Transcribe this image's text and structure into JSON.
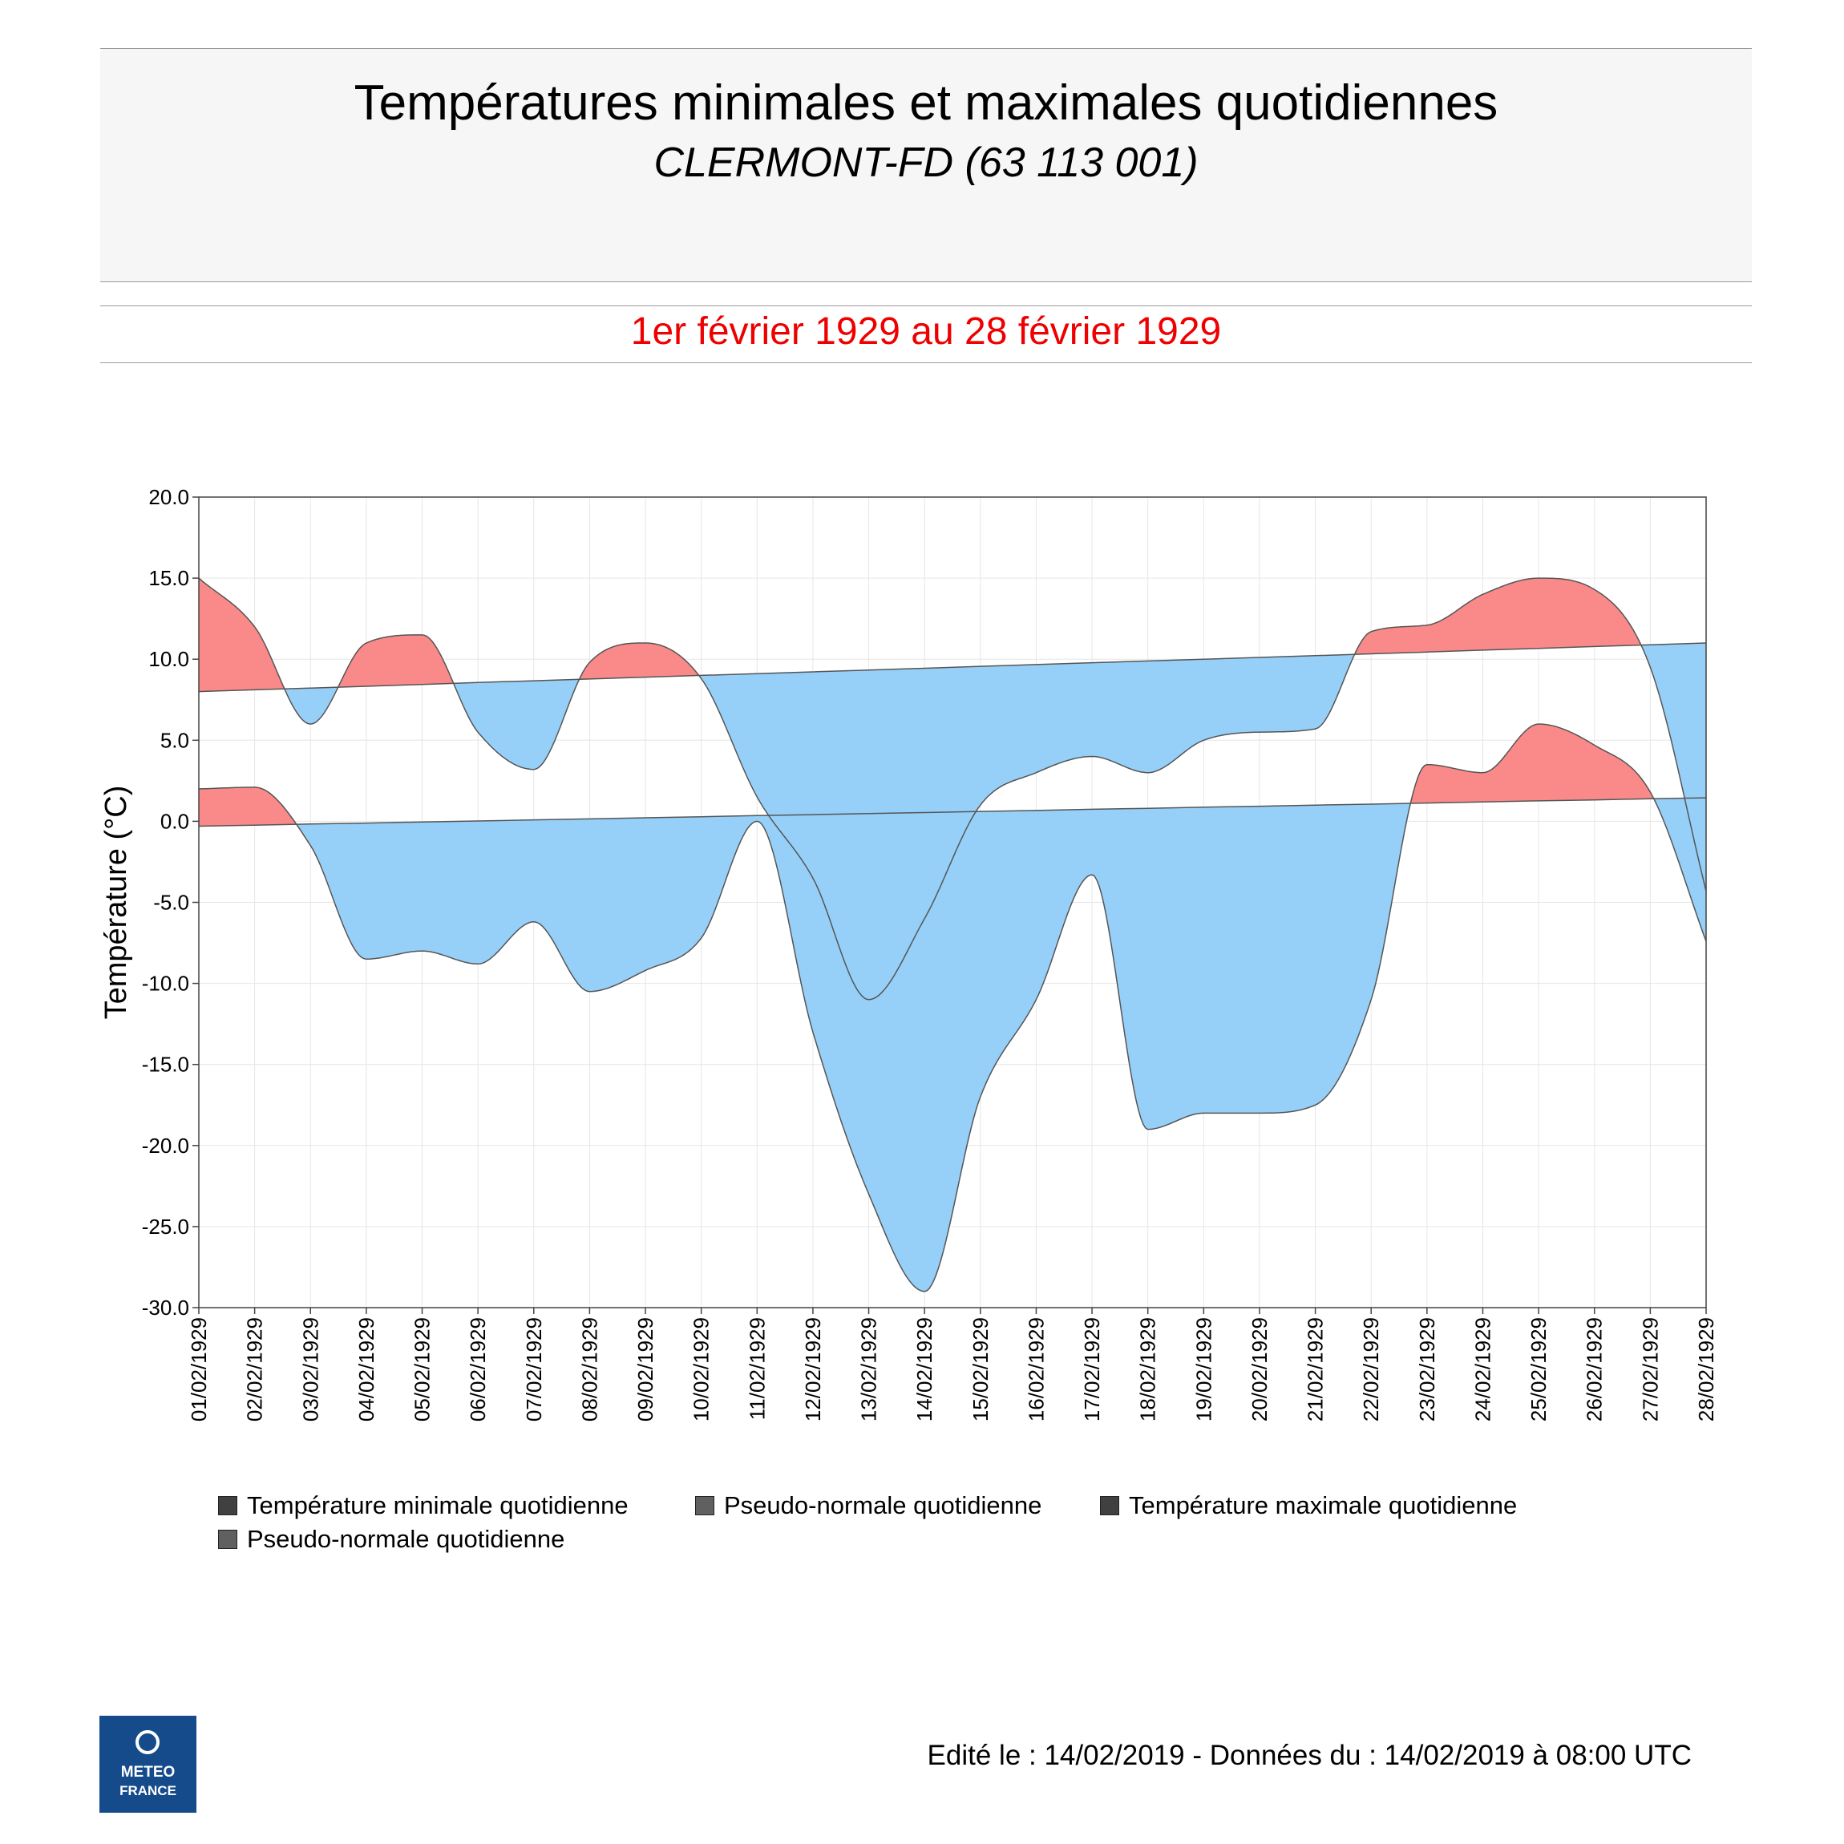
{
  "header": {
    "title": "Températures minimales et maximales quotidiennes",
    "station": "CLERMONT-FD (63 113 001)",
    "period": "1er février 1929 au 28 février 1929"
  },
  "colors": {
    "above_normal": "#f98a89",
    "below_normal": "#96d0f8",
    "overlap": "#7cc4f6",
    "period_text": "#ee0000",
    "logo_bg": "#154b8b"
  },
  "chart_data": {
    "type": "area",
    "ylabel": "Température (°C)",
    "ylim": [
      -30,
      20
    ],
    "yticks": [
      "20.0",
      "15.0",
      "10.0",
      "5.0",
      "0.0",
      "-5.0",
      "-10.0",
      "-15.0",
      "-20.0",
      "-25.0",
      "-30.0"
    ],
    "x": [
      "01/02/1929",
      "02/02/1929",
      "03/02/1929",
      "04/02/1929",
      "05/02/1929",
      "06/02/1929",
      "07/02/1929",
      "08/02/1929",
      "09/02/1929",
      "10/02/1929",
      "11/02/1929",
      "12/02/1929",
      "13/02/1929",
      "14/02/1929",
      "15/02/1929",
      "16/02/1929",
      "17/02/1929",
      "18/02/1929",
      "19/02/1929",
      "20/02/1929",
      "21/02/1929",
      "22/02/1929",
      "23/02/1929",
      "24/02/1929",
      "25/02/1929",
      "26/02/1929",
      "27/02/1929",
      "28/02/1929"
    ],
    "grid": true,
    "legend_position": "bottom",
    "series": [
      {
        "name": "Température minimale quotidienne",
        "values": [
          2.0,
          2.1,
          -1.5,
          -8.5,
          -8.0,
          -8.8,
          -6.2,
          -10.5,
          -9.2,
          -7.2,
          0.0,
          -13.0,
          -23.0,
          -29.0,
          -17.0,
          -11.0,
          -3.3,
          -19.0,
          -18.0,
          -18.0,
          -17.5,
          -11.0,
          3.5,
          3.0,
          6.0,
          4.7,
          1.8,
          -7.4
        ]
      },
      {
        "name": "Pseudo-normale quotidienne",
        "values": [
          -0.3,
          -0.24,
          -0.17,
          -0.11,
          -0.04,
          0.02,
          0.09,
          0.15,
          0.22,
          0.28,
          0.35,
          0.41,
          0.48,
          0.54,
          0.61,
          0.67,
          0.74,
          0.8,
          0.87,
          0.93,
          1.0,
          1.06,
          1.13,
          1.19,
          1.26,
          1.32,
          1.39,
          1.45
        ]
      },
      {
        "name": "Température maximale quotidienne",
        "values": [
          15.0,
          12.0,
          6.0,
          11.0,
          11.5,
          5.5,
          3.2,
          9.8,
          11.0,
          8.8,
          1.5,
          -3.5,
          -11.0,
          -6.0,
          1.0,
          3.0,
          4.0,
          3.0,
          5.0,
          5.5,
          5.7,
          11.7,
          12.1,
          14.0,
          15.0,
          14.3,
          9.5,
          -4.3
        ]
      },
      {
        "name": "Pseudo-normale quotidienne",
        "values": [
          8.0,
          8.11,
          8.22,
          8.33,
          8.44,
          8.56,
          8.67,
          8.78,
          8.89,
          9.0,
          9.11,
          9.22,
          9.33,
          9.44,
          9.56,
          9.67,
          9.78,
          9.89,
          10.0,
          10.11,
          10.22,
          10.33,
          10.44,
          10.56,
          10.67,
          10.78,
          10.89,
          11.0
        ]
      }
    ]
  },
  "legend": [
    {
      "label": "Température minimale quotidienne",
      "color": "#404040"
    },
    {
      "label": "Pseudo-normale quotidienne",
      "color": "#606060"
    },
    {
      "label": "Température maximale quotidienne",
      "color": "#404040"
    },
    {
      "label": "Pseudo-normale quotidienne",
      "color": "#606060"
    }
  ],
  "logo": {
    "line1": "METEO",
    "line2": "FRANCE"
  },
  "footer": "Edité le : 14/02/2019 - Données du : 14/02/2019 à 08:00 UTC"
}
